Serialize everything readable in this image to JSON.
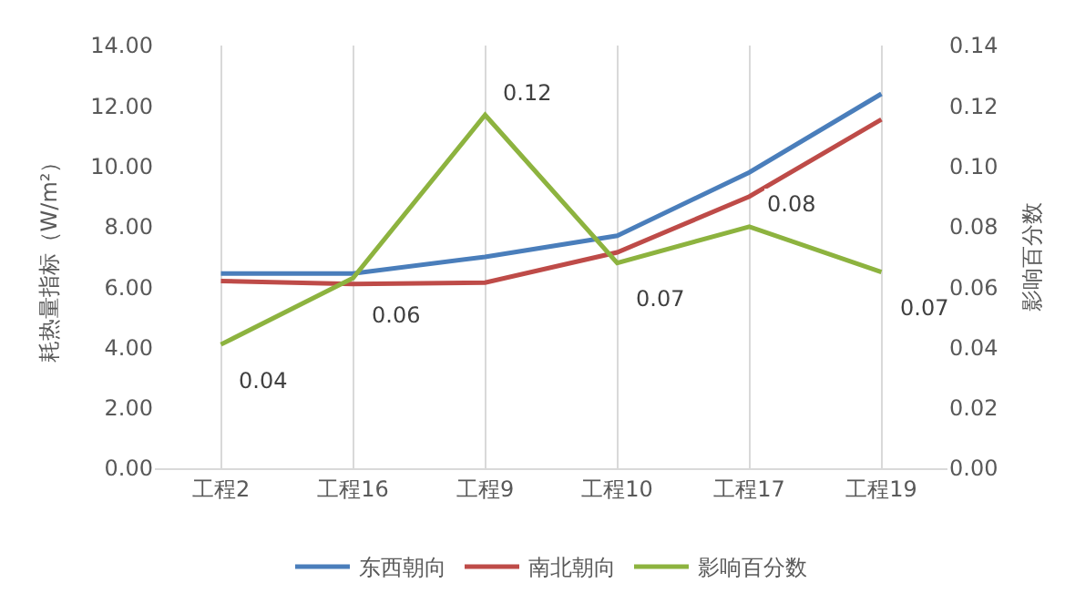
{
  "chart_data": {
    "type": "line",
    "categories": [
      "工程2",
      "工程16",
      "工程9",
      "工程10",
      "工程17",
      "工程19"
    ],
    "ylabel": "耗热量指标（W/m²）",
    "y2label": "影响百分数",
    "ylim": [
      0,
      14
    ],
    "yticks": [
      {
        "value": 0,
        "label": "0.00"
      },
      {
        "value": 2,
        "label": "2.00"
      },
      {
        "value": 4,
        "label": "4.00"
      },
      {
        "value": 6,
        "label": "6.00"
      },
      {
        "value": 8,
        "label": "8.00"
      },
      {
        "value": 10,
        "label": "10.00"
      },
      {
        "value": 12,
        "label": "12.00"
      },
      {
        "value": 14,
        "label": "14.00"
      }
    ],
    "y2lim": [
      0,
      0.14
    ],
    "y2ticks": [
      {
        "value": 0,
        "label": "0.00"
      },
      {
        "value": 0.02,
        "label": "0.02"
      },
      {
        "value": 0.04,
        "label": "0.04"
      },
      {
        "value": 0.06,
        "label": "0.06"
      },
      {
        "value": 0.08,
        "label": "0.08"
      },
      {
        "value": 0.1,
        "label": "0.10"
      },
      {
        "value": 0.12,
        "label": "0.12"
      },
      {
        "value": 0.14,
        "label": "0.14"
      }
    ],
    "series": [
      {
        "name": "东西朝向",
        "color": "#4a7ebb",
        "values": [
          6.45,
          6.45,
          7.0,
          7.7,
          9.8,
          12.4
        ]
      },
      {
        "name": "南北朝向",
        "color": "#be4b48",
        "values": [
          6.2,
          6.1,
          6.15,
          7.15,
          9.0,
          11.55
        ]
      },
      {
        "name": "影响百分数",
        "color": "#8db33f",
        "axis": "y2",
        "values": [
          0.041,
          0.063,
          0.117,
          0.068,
          0.08,
          0.065
        ],
        "value_labels": [
          "0.04",
          "0.06",
          "0.12",
          "0.07",
          "0.08",
          "0.07"
        ]
      }
    ],
    "grid": "x",
    "legend": "bottom",
    "marker": "none",
    "line_style": "solid"
  }
}
